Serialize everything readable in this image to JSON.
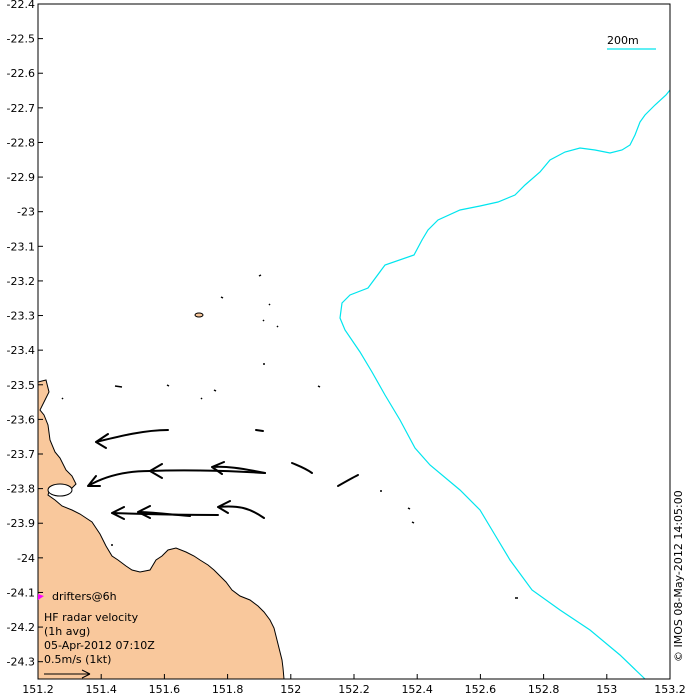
{
  "map": {
    "x_ticks": [
      "151.2",
      "151.4",
      "151.6",
      "151.8",
      "152",
      "152.2",
      "152.4",
      "152.6",
      "152.8",
      "153",
      "153.2"
    ],
    "y_ticks": [
      "-22.4",
      "-22.5",
      "-22.6",
      "-22.7",
      "-22.8",
      "-22.9",
      "-23",
      "-23.1",
      "-23.2",
      "-23.3",
      "-23.4",
      "-23.5",
      "-23.6",
      "-23.7",
      "-23.8",
      "-23.9",
      "-24",
      "-24.1",
      "-24.2",
      "-24.3"
    ],
    "x_range": [
      151.2,
      153.2
    ],
    "y_range": [
      -24.35,
      -22.4
    ],
    "colors": {
      "land": "#f9c89c",
      "contour": "#00e5ee",
      "drifter": "#ff00ff",
      "vector": "#000000"
    }
  },
  "contour_label": "200m",
  "legend": {
    "drifters": "drifters@6h",
    "title_line1": "HF radar velocity",
    "title_line2": "(1h avg)",
    "timestamp": "05-Apr-2012 07:10Z",
    "scale": "0.5m/s (1kt)"
  },
  "credit": "© IMOS 08-May-2012 14:05:00"
}
